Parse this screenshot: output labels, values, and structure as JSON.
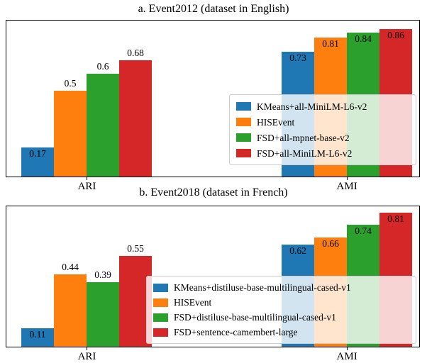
{
  "colors": {
    "series_blue": "#1f77b4",
    "series_orange": "#ff7f0e",
    "series_green": "#2ca02c",
    "series_red": "#d62728",
    "axes_border": "#000000",
    "legend_border": "#cccccc"
  },
  "chart_data": [
    {
      "type": "bar",
      "title": "a. Event2012 (dataset in English)",
      "categories": [
        "ARI",
        "AMI"
      ],
      "xlabel": "",
      "ylabel": "",
      "ylim": [
        0,
        0.91
      ],
      "grid": false,
      "legend_position": "center right inset",
      "series": [
        {
          "name": "KMeans+all-MiniLM-L6-v2",
          "color": "#1f77b4",
          "values": [
            0.17,
            0.73
          ]
        },
        {
          "name": "HISEvent",
          "color": "#ff7f0e",
          "values": [
            0.5,
            0.81
          ]
        },
        {
          "name": "FSD+all-mpnet-base-v2",
          "color": "#2ca02c",
          "values": [
            0.6,
            0.84
          ]
        },
        {
          "name": "FSD+all-MiniLM-L6-v2",
          "color": "#d62728",
          "values": [
            0.68,
            0.86
          ]
        }
      ],
      "label_positions": [
        [
          "inside",
          "above",
          "above",
          "above"
        ],
        [
          "inside",
          "inside",
          "inside",
          "inside"
        ]
      ]
    },
    {
      "type": "bar",
      "title": "b. Event2018 (dataset in French)",
      "categories": [
        "ARI",
        "AMI"
      ],
      "xlabel": "",
      "ylabel": "",
      "ylim": [
        0,
        0.85
      ],
      "grid": false,
      "legend_position": "lower center inset",
      "series": [
        {
          "name": "KMeans+distiluse-base-multilingual-cased-v1",
          "color": "#1f77b4",
          "values": [
            0.11,
            0.62
          ]
        },
        {
          "name": "HISEvent",
          "color": "#ff7f0e",
          "values": [
            0.44,
            0.66
          ]
        },
        {
          "name": "FSD+distiluse-base-multilingual-cased-v1",
          "color": "#2ca02c",
          "values": [
            0.39,
            0.74
          ]
        },
        {
          "name": "FSD+sentence-camembert-large",
          "color": "#d62728",
          "values": [
            0.55,
            0.81
          ]
        }
      ],
      "label_positions": [
        [
          "inside",
          "above",
          "above",
          "above"
        ],
        [
          "inside",
          "inside",
          "inside",
          "inside"
        ]
      ]
    }
  ]
}
